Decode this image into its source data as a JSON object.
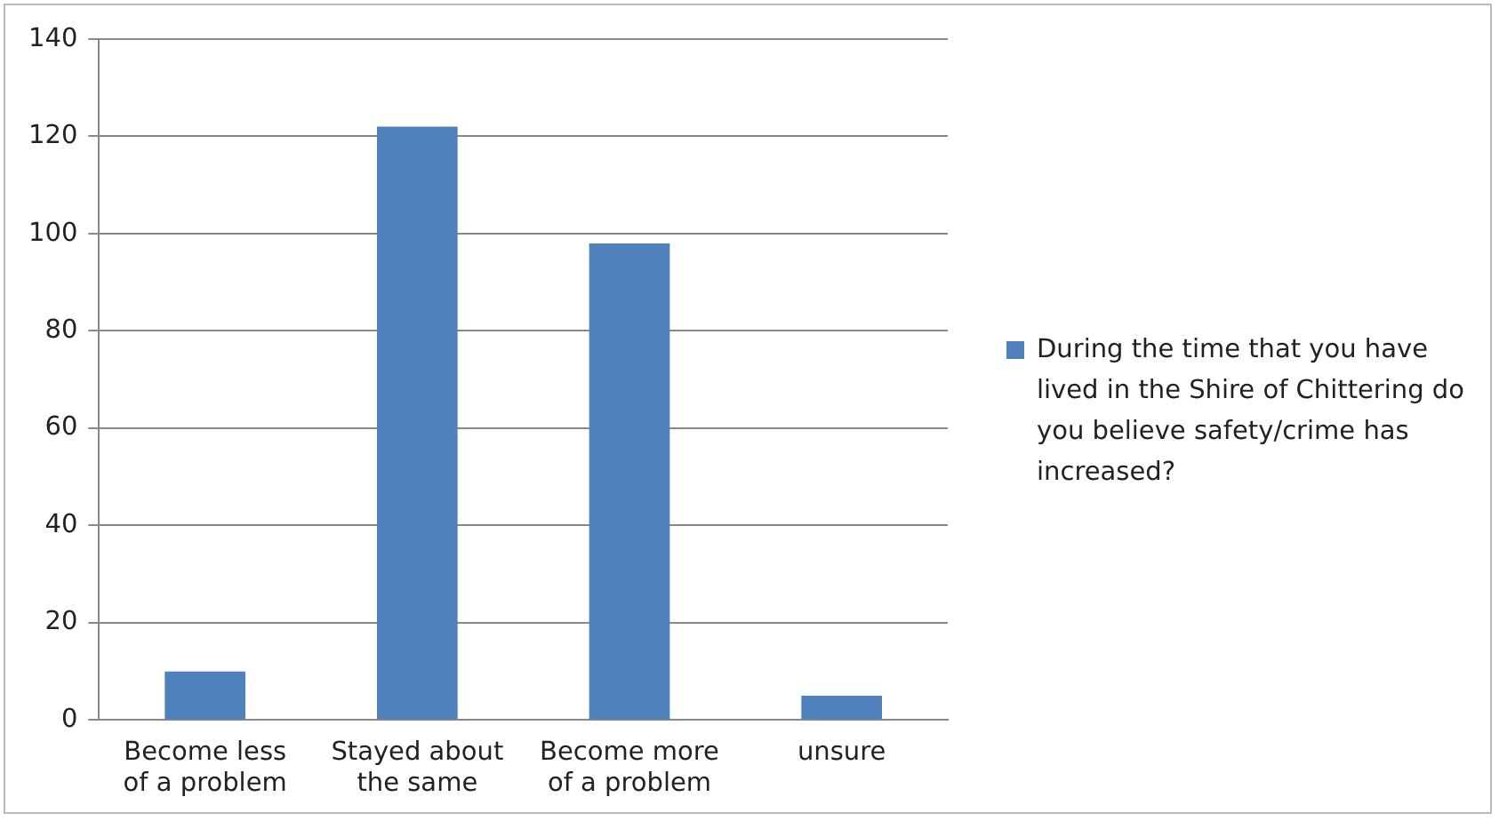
{
  "chart_data": {
    "type": "bar",
    "categories": [
      "Become less of a problem",
      "Stayed about the same",
      "Become more of a problem",
      "unsure"
    ],
    "series": [
      {
        "name": "During the time that you have lived in the Shire of Chittering do you believe safety/crime has increased?",
        "color": "#4f81bd",
        "values": [
          10,
          122,
          98,
          5
        ]
      }
    ],
    "ylim": [
      0,
      140
    ],
    "yticks": [
      0,
      20,
      40,
      60,
      80,
      100,
      120,
      140
    ],
    "grid": "y",
    "legend": "right"
  }
}
